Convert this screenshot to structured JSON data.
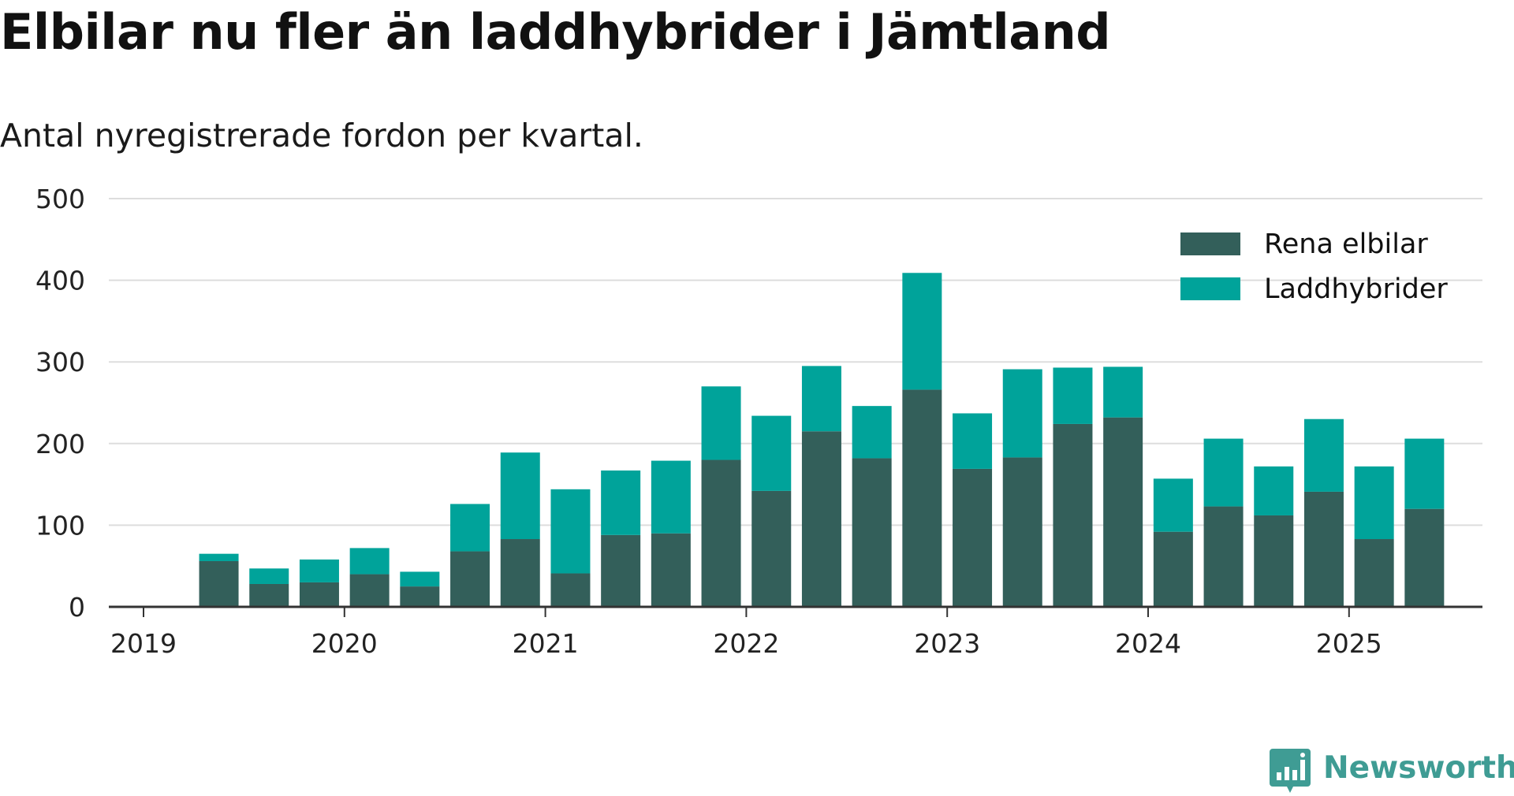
{
  "title": "Elbilar nu fler än laddhybrider i Jämtland",
  "subtitle": "Antal nyregistrerade fordon per kvartal.",
  "brand": {
    "name": "Newsworthy",
    "icon": "newsworthy-logo-icon",
    "color": "#3f9c94"
  },
  "colors": {
    "rena_elbilar": "#335f5a",
    "laddhybrider": "#00a39a",
    "grid": "#dddddd",
    "axis": "#333333",
    "text": "#111111"
  },
  "chart_data": {
    "type": "bar",
    "stacked": true,
    "categories": [
      "2019 Q2",
      "2019 Q3",
      "2019 Q4",
      "2020 Q1",
      "2020 Q2",
      "2020 Q3",
      "2020 Q4",
      "2021 Q1",
      "2021 Q2",
      "2021 Q3",
      "2021 Q4",
      "2022 Q1",
      "2022 Q2",
      "2022 Q3",
      "2022 Q4",
      "2023 Q1",
      "2023 Q2",
      "2023 Q3",
      "2023 Q4",
      "2024 Q1",
      "2024 Q2",
      "2024 Q3",
      "2024 Q4",
      "2025 Q1",
      "2025 Q2"
    ],
    "series": [
      {
        "name": "Rena elbilar",
        "color": "#335f5a",
        "values": [
          56,
          28,
          30,
          40,
          25,
          68,
          83,
          41,
          88,
          90,
          180,
          142,
          215,
          182,
          266,
          169,
          183,
          224,
          232,
          92,
          123,
          112,
          141,
          83,
          120
        ]
      },
      {
        "name": "Laddhybrider",
        "color": "#00a39a",
        "values": [
          9,
          19,
          28,
          32,
          18,
          58,
          106,
          103,
          79,
          89,
          90,
          92,
          80,
          64,
          143,
          68,
          108,
          69,
          62,
          65,
          83,
          60,
          89,
          89,
          86
        ]
      }
    ],
    "x_ticks": [
      "2019",
      "2020",
      "2021",
      "2022",
      "2023",
      "2024",
      "2025"
    ],
    "y_ticks": [
      0,
      100,
      200,
      300,
      400,
      500
    ],
    "ylim": [
      0,
      500
    ],
    "legend": "top-right",
    "grid": true
  }
}
